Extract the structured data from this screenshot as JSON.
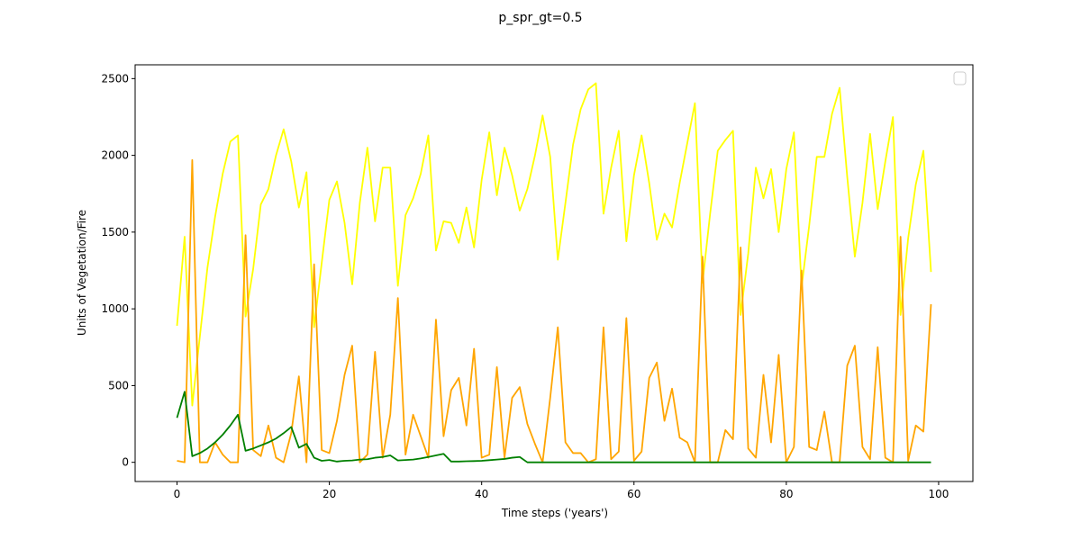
{
  "chart_data": {
    "type": "line",
    "title": "p_spr_gt=0.5",
    "xlabel": "Time steps ('years')",
    "ylabel": "Units of Vegetation/Fire",
    "xlim": [
      -5.5,
      104.5
    ],
    "ylim": [
      -125,
      2590
    ],
    "xticks": [
      0,
      20,
      40,
      60,
      80,
      100
    ],
    "yticks": [
      0,
      500,
      1000,
      1500,
      2000,
      2500
    ],
    "grid": false,
    "legend": "top-right (empty)",
    "x": [
      0,
      1,
      2,
      3,
      4,
      5,
      6,
      7,
      8,
      9,
      10,
      11,
      12,
      13,
      14,
      15,
      16,
      17,
      18,
      19,
      20,
      21,
      22,
      23,
      24,
      25,
      26,
      27,
      28,
      29,
      30,
      31,
      32,
      33,
      34,
      35,
      36,
      37,
      38,
      39,
      40,
      41,
      42,
      43,
      44,
      45,
      46,
      47,
      48,
      49,
      50,
      51,
      52,
      53,
      54,
      55,
      56,
      57,
      58,
      59,
      60,
      61,
      62,
      63,
      64,
      65,
      66,
      67,
      68,
      69,
      70,
      71,
      72,
      73,
      74,
      75,
      76,
      77,
      78,
      79,
      80,
      81,
      82,
      83,
      84,
      85,
      86,
      87,
      88,
      89,
      90,
      91,
      92,
      93,
      94,
      95,
      96,
      97,
      98,
      99
    ],
    "series": [
      {
        "color": "#ffff00",
        "values": [
          890,
          1470,
          370,
          820,
          1270,
          1600,
          1880,
          2090,
          2130,
          950,
          1260,
          1680,
          1780,
          2000,
          2170,
          1960,
          1660,
          1890,
          880,
          1300,
          1710,
          1830,
          1560,
          1160,
          1690,
          2050,
          1570,
          1920,
          1920,
          1150,
          1610,
          1720,
          1880,
          2130,
          1380,
          1570,
          1560,
          1430,
          1660,
          1400,
          1840,
          2150,
          1740,
          2050,
          1870,
          1640,
          1780,
          2000,
          2260,
          1990,
          1320,
          1690,
          2070,
          2300,
          2430,
          2470,
          1620,
          1920,
          2160,
          1440,
          1870,
          2130,
          1820,
          1450,
          1620,
          1530,
          1820,
          2080,
          2340,
          1170,
          1620,
          2030,
          2100,
          2160,
          960,
          1360,
          1920,
          1720,
          1910,
          1500,
          1910,
          2150,
          1140,
          1540,
          1990,
          1990,
          2270,
          2440,
          1860,
          1340,
          1690,
          2140,
          1650,
          1960,
          2250,
          960,
          1460,
          1810,
          2030,
          1240
        ]
      },
      {
        "color": "#ffa500",
        "values": [
          10,
          0,
          1970,
          0,
          0,
          130,
          50,
          0,
          0,
          1480,
          80,
          40,
          240,
          30,
          0,
          190,
          560,
          0,
          1290,
          80,
          60,
          270,
          570,
          760,
          0,
          50,
          720,
          30,
          310,
          1070,
          50,
          310,
          170,
          30,
          930,
          170,
          470,
          550,
          240,
          740,
          30,
          50,
          620,
          30,
          420,
          490,
          250,
          120,
          0,
          420,
          880,
          130,
          60,
          60,
          0,
          20,
          880,
          20,
          70,
          940,
          10,
          70,
          550,
          650,
          270,
          480,
          160,
          130,
          0,
          1340,
          0,
          0,
          210,
          150,
          1400,
          90,
          30,
          570,
          130,
          700,
          0,
          100,
          1250,
          100,
          80,
          330,
          0,
          0,
          630,
          760,
          100,
          20,
          750,
          30,
          0,
          1470,
          10,
          240,
          200,
          1030
        ]
      },
      {
        "color": "#008000",
        "values": [
          290,
          460,
          40,
          60,
          90,
          130,
          180,
          240,
          310,
          75,
          90,
          110,
          130,
          155,
          190,
          230,
          95,
          120,
          30,
          10,
          15,
          5,
          10,
          12,
          18,
          20,
          30,
          35,
          45,
          12,
          15,
          18,
          25,
          35,
          45,
          55,
          5,
          5,
          7,
          8,
          10,
          14,
          18,
          22,
          30,
          35,
          0,
          0,
          0,
          0,
          0,
          0,
          0,
          0,
          0,
          0,
          0,
          0,
          0,
          0,
          0,
          0,
          0,
          0,
          0,
          0,
          0,
          0,
          0,
          0,
          0,
          0,
          0,
          0,
          0,
          0,
          0,
          0,
          0,
          0,
          0,
          0,
          0,
          0,
          0,
          0,
          0,
          0,
          0,
          0,
          0,
          0,
          0,
          0,
          0,
          0,
          0,
          0,
          0,
          0
        ]
      }
    ]
  }
}
